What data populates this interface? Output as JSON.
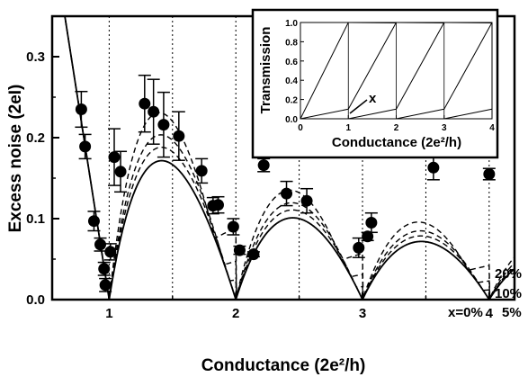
{
  "chart_data": [
    {
      "type": "scatter",
      "xlabel": "Conductance (2e²/h)",
      "ylabel": "Excess noise (2eI)",
      "xlim": [
        0.55,
        4.2
      ],
      "ylim": [
        0,
        0.35
      ],
      "x_ticks": [
        1,
        2,
        3,
        4
      ],
      "y_ticks": [
        0.0,
        0.1,
        0.2,
        0.3
      ],
      "x_tick_labels": [
        "1",
        "2",
        "3",
        "4"
      ],
      "y_tick_labels": [
        "0.0",
        "0.1",
        "0.2",
        "0.3"
      ],
      "dotted_vertical_lines": [
        1,
        1.5,
        2,
        2.5,
        3,
        3.5,
        4
      ],
      "points": [
        {
          "x": 0.78,
          "y": 0.235,
          "err": 0.022
        },
        {
          "x": 0.81,
          "y": 0.189,
          "err": 0.015
        },
        {
          "x": 0.88,
          "y": 0.097,
          "err": 0.012
        },
        {
          "x": 0.93,
          "y": 0.068,
          "err": 0.008
        },
        {
          "x": 0.96,
          "y": 0.038,
          "err": 0.008
        },
        {
          "x": 0.97,
          "y": 0.018,
          "err": 0.008
        },
        {
          "x": 1.01,
          "y": 0.059,
          "err": 0.01
        },
        {
          "x": 1.04,
          "y": 0.176,
          "err": 0.035
        },
        {
          "x": 1.09,
          "y": 0.158,
          "err": 0.025
        },
        {
          "x": 1.28,
          "y": 0.242,
          "err": 0.035
        },
        {
          "x": 1.35,
          "y": 0.232,
          "err": 0.04
        },
        {
          "x": 1.43,
          "y": 0.216,
          "err": 0.04
        },
        {
          "x": 1.55,
          "y": 0.202,
          "err": 0.03
        },
        {
          "x": 1.73,
          "y": 0.159,
          "err": 0.015
        },
        {
          "x": 1.82,
          "y": 0.116,
          "err": 0.01
        },
        {
          "x": 1.86,
          "y": 0.117,
          "err": 0.01
        },
        {
          "x": 1.98,
          "y": 0.09,
          "err": 0.01
        },
        {
          "x": 2.03,
          "y": 0.061,
          "err": 0.005
        },
        {
          "x": 2.14,
          "y": 0.056,
          "err": 0.003
        },
        {
          "x": 2.22,
          "y": 0.166,
          "err": 0.008
        },
        {
          "x": 2.4,
          "y": 0.131,
          "err": 0.015
        },
        {
          "x": 2.56,
          "y": 0.122,
          "err": 0.015
        },
        {
          "x": 2.97,
          "y": 0.064,
          "err": 0.012
        },
        {
          "x": 3.04,
          "y": 0.078,
          "err": 0.005
        },
        {
          "x": 3.07,
          "y": 0.095,
          "err": 0.012
        },
        {
          "x": 3.56,
          "y": 0.163,
          "err": 0.015
        },
        {
          "x": 4.0,
          "y": 0.155,
          "err": 0.007
        }
      ],
      "curves": [
        {
          "name": "x=0%",
          "x_imperfection": 0.0,
          "style": "solid"
        },
        {
          "name": "5%",
          "x_imperfection": 0.05,
          "style": "dashed"
        },
        {
          "name": "10%",
          "x_imperfection": 0.1,
          "style": "dashed"
        },
        {
          "name": "20%",
          "x_imperfection": 0.2,
          "style": "dashed"
        }
      ]
    },
    {
      "type": "line",
      "xlabel": "Conductance (2e²/h)",
      "ylabel": "Transmission",
      "xlim": [
        0,
        4
      ],
      "ylim": [
        0,
        1.0
      ],
      "x_ticks": [
        0,
        1,
        2,
        3,
        4
      ],
      "y_ticks": [
        0.0,
        0.2,
        0.4,
        0.6,
        0.8,
        1.0
      ],
      "x_tick_labels": [
        "0",
        "1",
        "2",
        "3",
        "4"
      ],
      "y_tick_labels": [
        "0.0",
        "0.2",
        "0.4",
        "0.6",
        "0.8",
        "1.0"
      ],
      "annotation": "x",
      "grid": "vertical",
      "mixing": 0.1
    }
  ]
}
